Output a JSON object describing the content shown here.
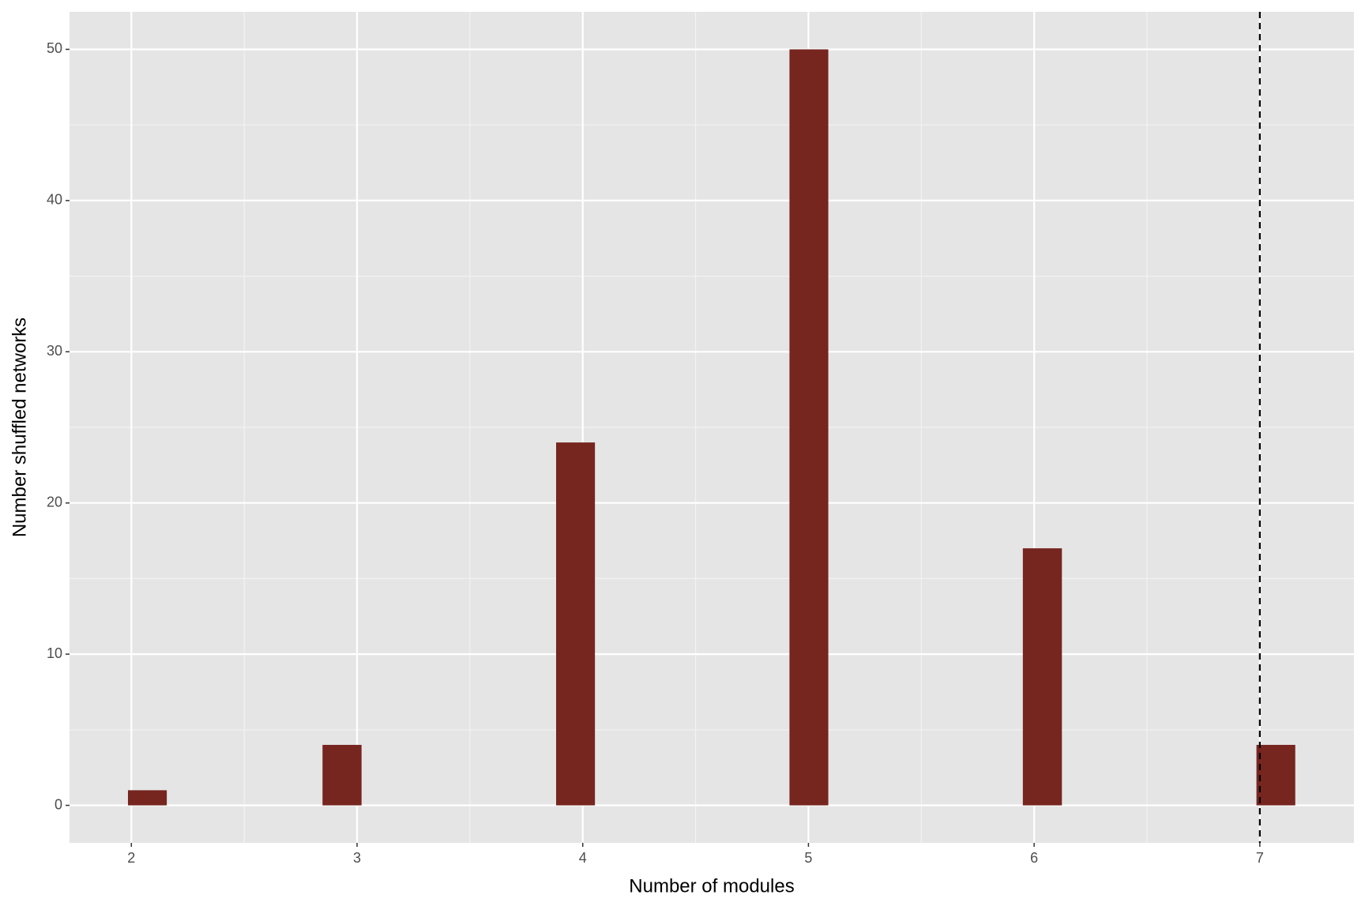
{
  "chart_data": {
    "type": "histogram",
    "xlabel": "Number of modules",
    "ylabel": "Number shuffled networks",
    "bins": [
      1.985,
      2.157,
      2.33,
      2.502,
      2.675,
      2.847,
      3.02,
      3.192,
      3.364,
      3.537,
      3.709,
      3.882,
      4.054,
      4.226,
      4.399,
      4.571,
      4.744,
      4.916,
      5.088,
      5.261,
      5.433,
      5.606,
      5.778,
      5.95,
      6.123,
      6.295,
      6.467,
      6.64,
      6.812,
      6.985,
      7.157
    ],
    "values": [
      1,
      0,
      0,
      0,
      0,
      4,
      0,
      0,
      0,
      0,
      0,
      24,
      0,
      0,
      0,
      0,
      0,
      50,
      0,
      0,
      0,
      0,
      0,
      17,
      0,
      0,
      0,
      0,
      0,
      4
    ],
    "color": "#76251f",
    "xlim": [
      1.726,
      7.417
    ],
    "ylim": [
      -2.48,
      52.48
    ],
    "xticks": [
      2,
      3,
      4,
      5,
      6,
      7
    ],
    "yticks": [
      0,
      10,
      20,
      30,
      40,
      50
    ],
    "grid": true,
    "vline": 7
  }
}
